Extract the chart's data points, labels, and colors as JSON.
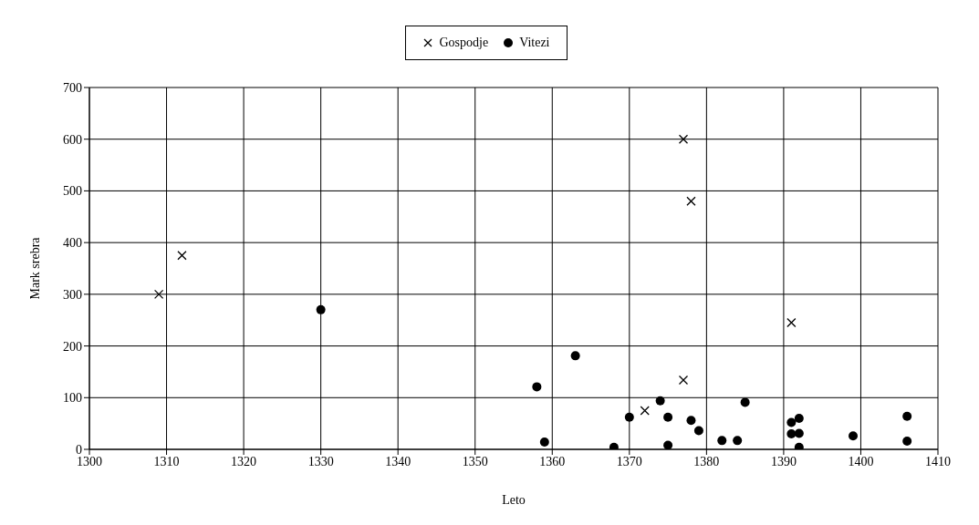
{
  "chart_data": {
    "type": "scatter",
    "xlabel": "Leto",
    "ylabel": "Mark srebra",
    "xlim": [
      1300,
      1410
    ],
    "xticks": [
      1300,
      1310,
      1320,
      1330,
      1340,
      1350,
      1360,
      1370,
      1380,
      1390,
      1400,
      1410
    ],
    "ylim": [
      0,
      700
    ],
    "yticks": [
      0,
      100,
      200,
      300,
      400,
      500,
      600,
      700
    ],
    "grid": true,
    "legend": "top",
    "series": [
      {
        "name": "Gospodje",
        "color": "#000000",
        "marker": "cross",
        "x": [
          1309,
          1312,
          1372,
          1377,
          1377,
          1378,
          1391
        ],
        "values": [
          300,
          375,
          75,
          134,
          600,
          480,
          245
        ]
      },
      {
        "name": "Vitezi",
        "color": "#000000",
        "marker": "circle",
        "x": [
          1330,
          1358,
          1359,
          1363,
          1368,
          1370,
          1374,
          1375,
          1375,
          1378,
          1379,
          1382,
          1384,
          1385,
          1391,
          1391,
          1392,
          1392,
          1392,
          1399,
          1406,
          1406
        ],
        "values": [
          270,
          121,
          14,
          181,
          4,
          62,
          94,
          62,
          8,
          56,
          36,
          17,
          17,
          91,
          52,
          30,
          60,
          31,
          4,
          26,
          64,
          16
        ]
      }
    ]
  }
}
